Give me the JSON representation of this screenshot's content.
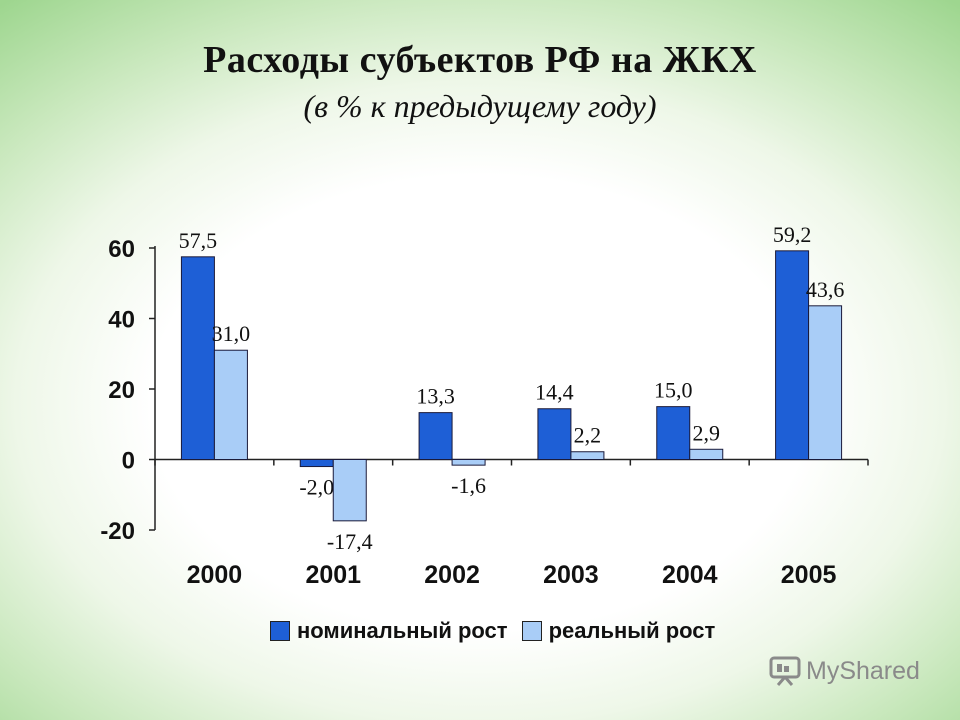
{
  "title": "Расходы субъектов РФ на ЖКХ",
  "subtitle": "(в % к предыдущему году)",
  "watermark": {
    "text": "MyShared",
    "icon": "presentation-board-icon"
  },
  "chart_data": {
    "type": "bar",
    "categories": [
      "2000",
      "2001",
      "2002",
      "2003",
      "2004",
      "2005"
    ],
    "series": [
      {
        "name": "номинальный рост",
        "color": "#1e5fd6",
        "values": [
          57.5,
          -2.0,
          13.3,
          14.4,
          15.0,
          59.2
        ],
        "labels": [
          "57,5",
          "-2,0",
          "13,3",
          "14,4",
          "15,0",
          "59,2"
        ]
      },
      {
        "name": "реальный рост",
        "color": "#a9cdf7",
        "values": [
          31.0,
          -17.4,
          -1.6,
          2.2,
          2.9,
          43.6
        ],
        "labels": [
          "31,0",
          "-17,4",
          "-1,6",
          "2,2",
          "2,9",
          "43,6"
        ]
      }
    ],
    "yticks": [
      60,
      40,
      20,
      0,
      -20
    ],
    "ytick_labels": [
      "60",
      "40",
      "20",
      "0",
      "-20"
    ],
    "ylim": [
      -20,
      60
    ],
    "legend_position": "bottom",
    "grid": false
  }
}
